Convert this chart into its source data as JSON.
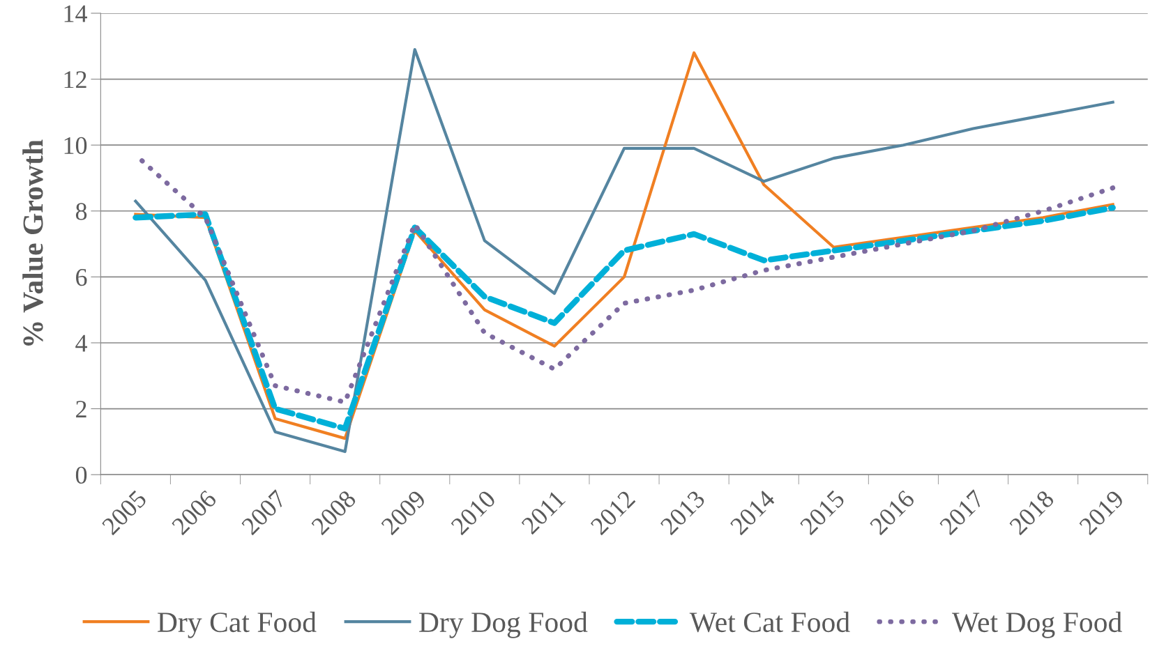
{
  "chart_data": {
    "type": "line",
    "ylabel": "% Value Growth",
    "categories": [
      "2005",
      "2006",
      "2007",
      "2008",
      "2009",
      "2010",
      "2011",
      "2012",
      "2013",
      "2014",
      "2015",
      "2016",
      "2017",
      "2018",
      "2019"
    ],
    "ylim": [
      0,
      14
    ],
    "yticks": [
      0,
      2,
      4,
      6,
      8,
      10,
      12,
      14
    ],
    "grid": "y",
    "legend": "bottom",
    "series": [
      {
        "name": "Dry Cat Food",
        "color": "#f07f22",
        "line_style": "solid",
        "values": [
          7.9,
          7.8,
          1.7,
          1.1,
          7.4,
          5.0,
          3.9,
          6.0,
          12.8,
          8.8,
          6.9,
          7.2,
          7.5,
          7.8,
          8.2
        ]
      },
      {
        "name": "Dry Dog Food",
        "color": "#5585a0",
        "line_style": "solid",
        "values": [
          8.3,
          5.9,
          1.3,
          0.7,
          12.9,
          7.1,
          5.5,
          9.9,
          9.9,
          8.9,
          9.6,
          10.0,
          10.5,
          10.9,
          11.3
        ]
      },
      {
        "name": "Wet Cat Food",
        "color": "#00b0d8",
        "line_style": "dashed",
        "values": [
          7.8,
          7.9,
          2.0,
          1.4,
          7.5,
          5.4,
          4.6,
          6.8,
          7.3,
          6.5,
          6.8,
          7.1,
          7.4,
          7.7,
          8.1
        ]
      },
      {
        "name": "Wet Dog Food",
        "color": "#7d6aa0",
        "line_style": "dotted",
        "values": [
          9.7,
          7.8,
          2.7,
          2.2,
          7.6,
          4.3,
          3.2,
          5.2,
          5.6,
          6.2,
          6.6,
          7.0,
          7.4,
          8.0,
          8.7
        ]
      }
    ]
  }
}
